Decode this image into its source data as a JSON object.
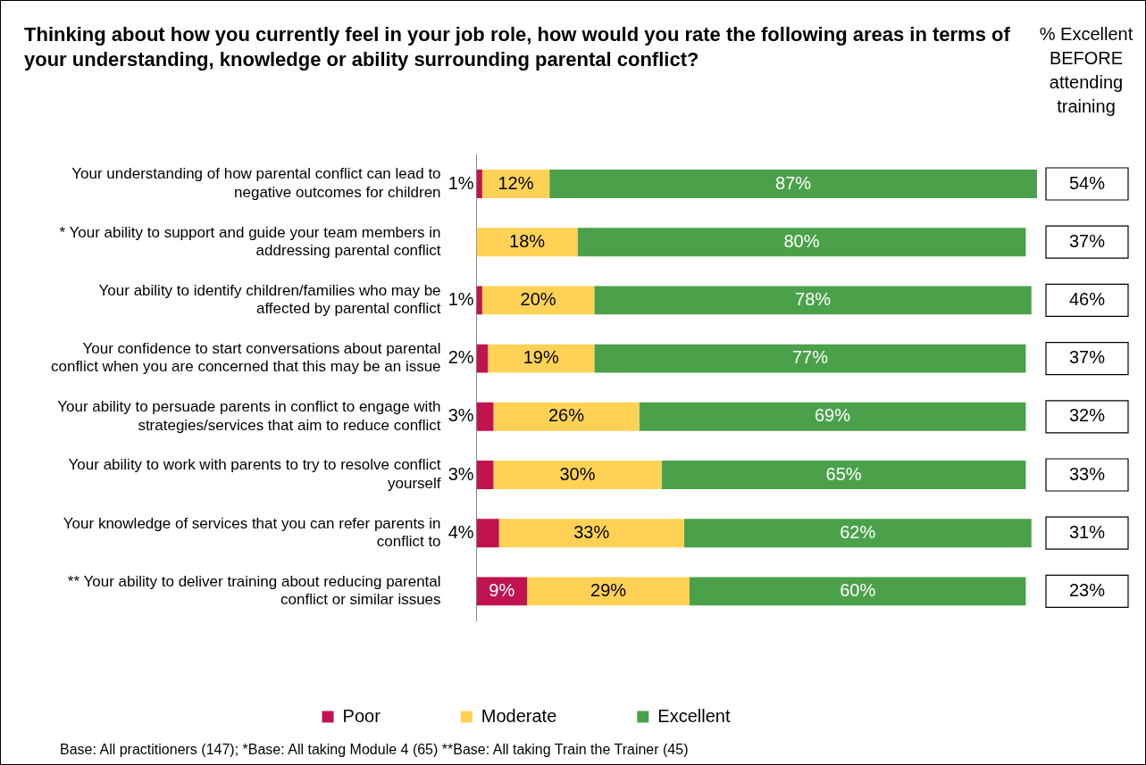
{
  "chart_data": {
    "type": "bar",
    "orientation": "horizontal",
    "stacked": true,
    "title": "Thinking about how you currently feel in your job role, how would you rate the following areas in terms of your understanding, knowledge or ability surrounding parental conflict?",
    "categories": [
      "Your understanding of how parental conflict can lead to negative outcomes for children",
      "* Your ability to support and guide your team members in addressing parental conflict",
      "Your ability to identify children/families who may be affected by parental conflict",
      "Your confidence to start conversations about parental conflict when you are concerned that this may be an issue",
      "Your ability to persuade parents in conflict to engage with strategies/services that aim to reduce conflict",
      "Your ability to work with parents to try to resolve conflict yourself",
      "Your knowledge of services that you can refer parents in conflict to",
      "** Your ability to deliver training about reducing parental conflict or similar issues"
    ],
    "series": [
      {
        "name": "Poor",
        "color": "#c0134f",
        "values": [
          1,
          null,
          1,
          2,
          3,
          3,
          4,
          9
        ],
        "value_labels": [
          "1%",
          null,
          "1%",
          "2%",
          "3%",
          "3%",
          "4%",
          "9%"
        ]
      },
      {
        "name": "Moderate",
        "color": "#ffd256",
        "values": [
          12,
          18,
          20,
          19,
          26,
          30,
          33,
          29
        ],
        "value_labels": [
          "12%",
          "18%",
          "20%",
          "19%",
          "26%",
          "30%",
          "33%",
          "29%"
        ]
      },
      {
        "name": "Excellent",
        "color": "#4aa14a",
        "values": [
          87,
          80,
          78,
          77,
          69,
          65,
          62,
          60
        ],
        "value_labels": [
          "87%",
          "80%",
          "78%",
          "77%",
          "69%",
          "65%",
          "62%",
          "60%"
        ]
      }
    ],
    "tick_labels": "y",
    "grid": false,
    "legend": "bottom",
    "annotations": [
      "% Excellent BEFORE attending training",
      "54%",
      "37%",
      "46%",
      "37%",
      "32%",
      "33%",
      "31%",
      "23%",
      "Base: All practitioners (147); *Base: All taking Module 4 (65) **Base: All taking Train the Trainer (45)"
    ]
  }
}
